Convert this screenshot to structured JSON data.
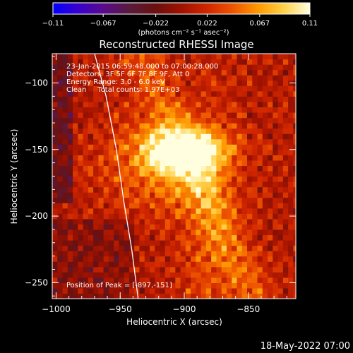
{
  "chart_data": {
    "type": "heatmap",
    "title": "Reconstructed RHESSI Image",
    "xlabel": "Heliocentric X (arcsec)",
    "ylabel": "Heliocentric Y (arcsec)",
    "xlim": [
      -1003,
      -813
    ],
    "ylim": [
      -262,
      -78
    ],
    "x_ticks": [
      -1000,
      -950,
      -900,
      -850
    ],
    "x_tick_labels": [
      "−1000",
      "−950",
      "−900",
      "−850"
    ],
    "y_ticks": [
      -100,
      -150,
      -200,
      -250
    ],
    "y_tick_labels": [
      "−100",
      "−150",
      "−200",
      "−250"
    ],
    "colorbar": {
      "range": [
        -0.11,
        0.11
      ],
      "ticks": [
        -0.11,
        -0.067,
        -0.022,
        0.022,
        0.067,
        0.11
      ],
      "tick_labels": [
        "−0.11",
        "−0.067",
        "−0.022",
        "0.022",
        "0.067",
        "0.11"
      ],
      "unit_label": "(photons cm⁻² s⁻¹ asec⁻²)",
      "colors": [
        "#0000ff",
        "#3a00cc",
        "#5a0b8a",
        "#5a1a3a",
        "#6a1010",
        "#a01200",
        "#d02600",
        "#ee5500",
        "#ff9900",
        "#ffd24a",
        "#ffffe0"
      ]
    },
    "annotations": [
      "23-Jan-2015 06:59:48.000 to 07:00:28.000",
      "Detectors: 3F 5F 6F 7F 8F 9F, Att 0",
      "Energy Range: 3.0 - 6.0 keV",
      "Clean     Total counts: 1.97E+03"
    ],
    "peak_label": "Position of Peak = [-897,-151]",
    "peak": {
      "x": -897,
      "y": -151,
      "value": 0.11
    },
    "limb_curve": [
      [
        -970,
        -78
      ],
      [
        -961,
        -110
      ],
      [
        -953,
        -150
      ],
      [
        -947,
        -190
      ],
      [
        -941,
        -225
      ],
      [
        -936,
        -262
      ]
    ]
  },
  "footer_date": "18-May-2022 07:00"
}
